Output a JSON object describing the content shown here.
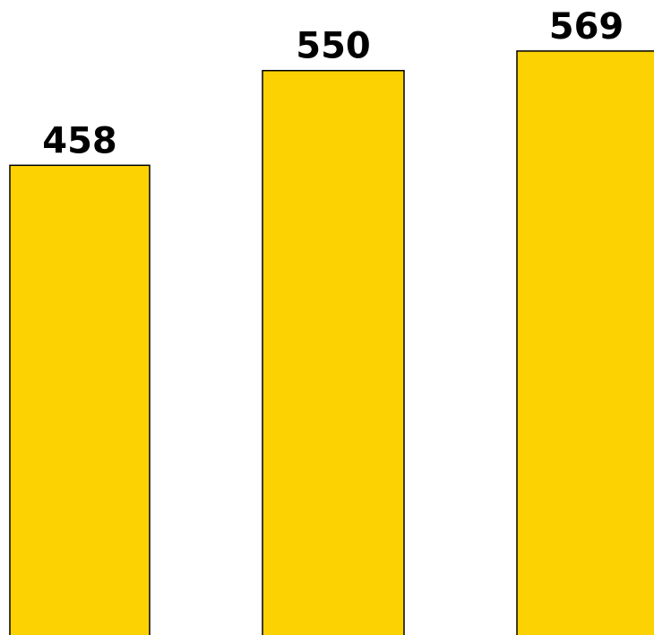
{
  "chart_data": {
    "type": "bar",
    "categories": [
      "",
      "",
      ""
    ],
    "values": [
      458,
      550,
      569
    ],
    "data_labels": [
      "458",
      "550",
      "569"
    ],
    "title": "",
    "xlabel": "",
    "ylabel": "",
    "grid": false,
    "colors": {
      "bar_fill": "#FDD202",
      "bar_edge": "#000000",
      "label_text": "#000000",
      "background": "#FFFFFF"
    }
  }
}
